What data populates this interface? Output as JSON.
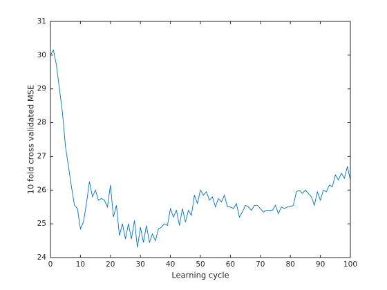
{
  "chart_data": {
    "type": "line",
    "xlabel": "Learning cycle",
    "ylabel": "10 fold cross validated MSE",
    "x": [
      0,
      1,
      2,
      3,
      4,
      5,
      6,
      7,
      8,
      9,
      10,
      11,
      12,
      13,
      14,
      15,
      16,
      17,
      18,
      19,
      20,
      21,
      22,
      23,
      24,
      25,
      26,
      27,
      28,
      29,
      30,
      31,
      32,
      33,
      34,
      35,
      36,
      37,
      38,
      39,
      40,
      41,
      42,
      43,
      44,
      45,
      46,
      47,
      48,
      49,
      50,
      51,
      52,
      53,
      54,
      55,
      56,
      57,
      58,
      59,
      60,
      61,
      62,
      63,
      64,
      65,
      66,
      67,
      68,
      69,
      70,
      71,
      72,
      73,
      74,
      75,
      76,
      77,
      78,
      79,
      80,
      81,
      82,
      83,
      84,
      85,
      86,
      87,
      88,
      89,
      90,
      91,
      92,
      93,
      94,
      95,
      96,
      97,
      98,
      99,
      100
    ],
    "values": [
      30.0,
      30.15,
      29.7,
      29.0,
      28.3,
      27.3,
      26.7,
      26.1,
      25.55,
      25.45,
      24.85,
      25.05,
      25.6,
      26.25,
      25.8,
      26.0,
      25.7,
      25.75,
      25.7,
      25.5,
      26.15,
      25.2,
      25.55,
      24.65,
      25.0,
      24.55,
      25.0,
      24.55,
      25.1,
      24.3,
      24.9,
      24.45,
      24.95,
      24.45,
      24.7,
      24.5,
      24.85,
      24.9,
      25.0,
      24.95,
      25.45,
      25.2,
      25.4,
      24.95,
      25.45,
      25.05,
      25.4,
      25.25,
      25.85,
      25.6,
      26.0,
      25.85,
      25.95,
      25.7,
      25.8,
      25.5,
      25.75,
      25.65,
      25.85,
      25.5,
      25.5,
      25.45,
      25.6,
      25.2,
      25.35,
      25.55,
      25.5,
      25.4,
      25.55,
      25.55,
      25.45,
      25.35,
      25.4,
      25.4,
      25.4,
      25.55,
      25.3,
      25.5,
      25.45,
      25.5,
      25.5,
      25.55,
      25.95,
      26.0,
      25.9,
      26.0,
      25.9,
      25.8,
      25.55,
      25.95,
      25.7,
      26.0,
      25.95,
      26.15,
      26.1,
      26.45,
      26.3,
      26.5,
      26.35,
      26.7,
      26.3
    ],
    "color": "#0072bd",
    "xlim": [
      0,
      100
    ],
    "xticks": [
      0,
      10,
      20,
      30,
      40,
      50,
      60,
      70,
      80,
      90,
      100
    ],
    "ylim": [
      24,
      31
    ],
    "yticks": [
      24,
      25,
      26,
      27,
      28,
      29,
      30,
      31
    ],
    "grid": false
  }
}
